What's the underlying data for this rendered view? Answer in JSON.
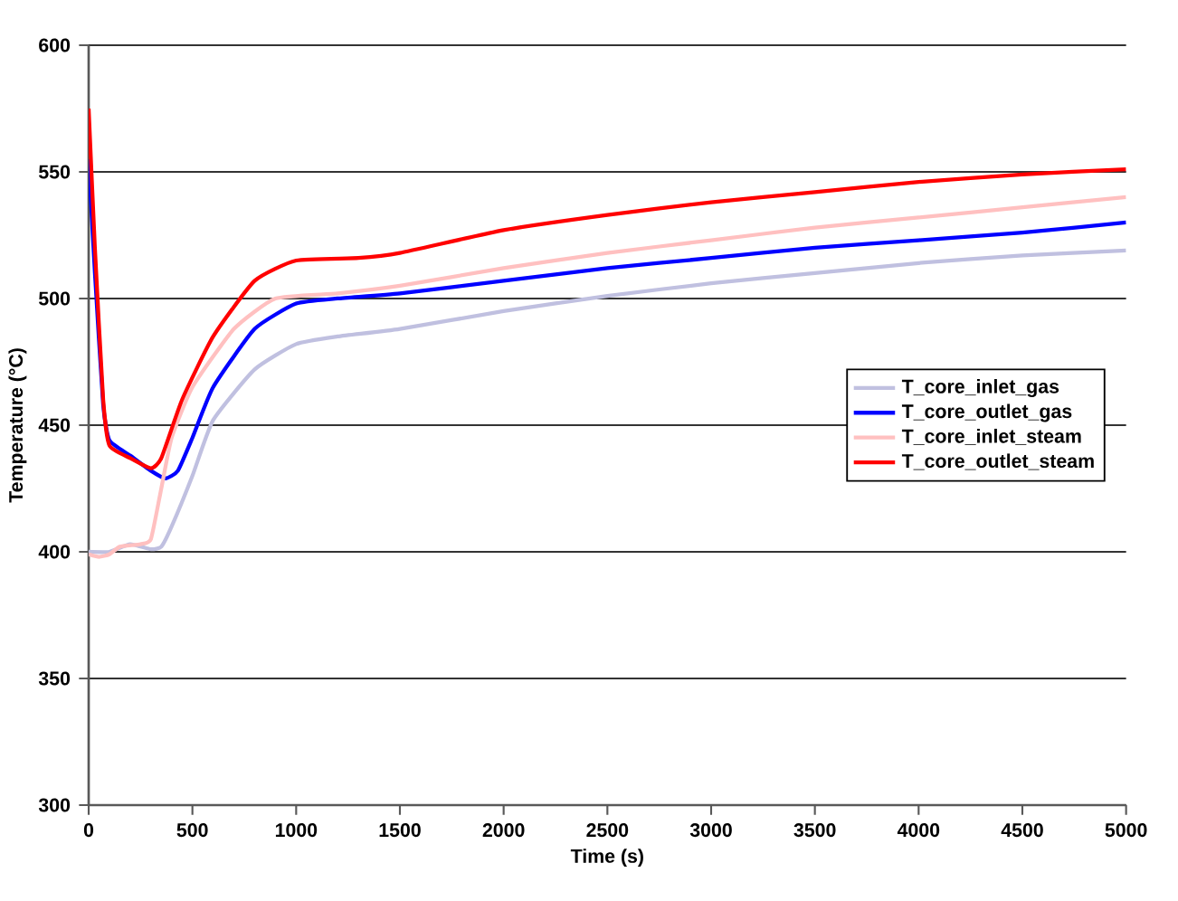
{
  "chart_data": {
    "type": "line",
    "xlabel": "Time (s)",
    "ylabel": "Temperature (°C)",
    "xlim": [
      0,
      5000
    ],
    "xticks": [
      0,
      500,
      1000,
      1500,
      2000,
      2500,
      3000,
      3500,
      4000,
      4500,
      5000
    ],
    "ylim": [
      300,
      600
    ],
    "yticks": [
      300,
      350,
      400,
      450,
      500,
      550,
      600
    ],
    "grid": "y",
    "legend": "right",
    "marker": "none",
    "line_style": "solid",
    "series": [
      {
        "name": "T_core_inlet_gas",
        "color": "#c0c0e0",
        "x": [
          0,
          100,
          200,
          300,
          350,
          400,
          500,
          600,
          800,
          1000,
          1200,
          1500,
          2000,
          2500,
          3000,
          3500,
          4000,
          4500,
          5000
        ],
        "values": [
          400,
          400,
          403,
          401,
          402,
          410,
          430,
          452,
          472,
          482,
          485,
          488,
          495,
          501,
          506,
          510,
          514,
          517,
          519
        ]
      },
      {
        "name": "T_core_outlet_gas",
        "color": "#0000ff",
        "x": [
          0,
          30,
          70,
          100,
          200,
          300,
          370,
          430,
          500,
          600,
          800,
          1000,
          1200,
          1500,
          2000,
          2500,
          3000,
          3500,
          4000,
          4500,
          5000
        ],
        "values": [
          555,
          510,
          458,
          444,
          438,
          432,
          429,
          432,
          445,
          465,
          488,
          498,
          500,
          502,
          507,
          512,
          516,
          520,
          523,
          526,
          530
        ]
      },
      {
        "name": "T_core_inlet_steam",
        "color": "#ffc0c0",
        "x": [
          0,
          50,
          100,
          150,
          250,
          300,
          350,
          400,
          500,
          700,
          900,
          1200,
          1500,
          2000,
          2500,
          3000,
          3500,
          4000,
          4500,
          5000
        ],
        "values": [
          399,
          398,
          399,
          402,
          403,
          405,
          425,
          445,
          465,
          488,
          500,
          502,
          505,
          512,
          518,
          523,
          528,
          532,
          536,
          540
        ]
      },
      {
        "name": "T_core_outlet_steam",
        "color": "#ff0000",
        "x": [
          0,
          30,
          70,
          100,
          200,
          300,
          350,
          450,
          600,
          800,
          1000,
          1300,
          1500,
          2000,
          2500,
          3000,
          3500,
          4000,
          4500,
          5000
        ],
        "values": [
          575,
          520,
          460,
          442,
          437,
          433,
          437,
          460,
          485,
          507,
          515,
          516,
          518,
          527,
          533,
          538,
          542,
          546,
          549,
          551
        ]
      }
    ]
  }
}
